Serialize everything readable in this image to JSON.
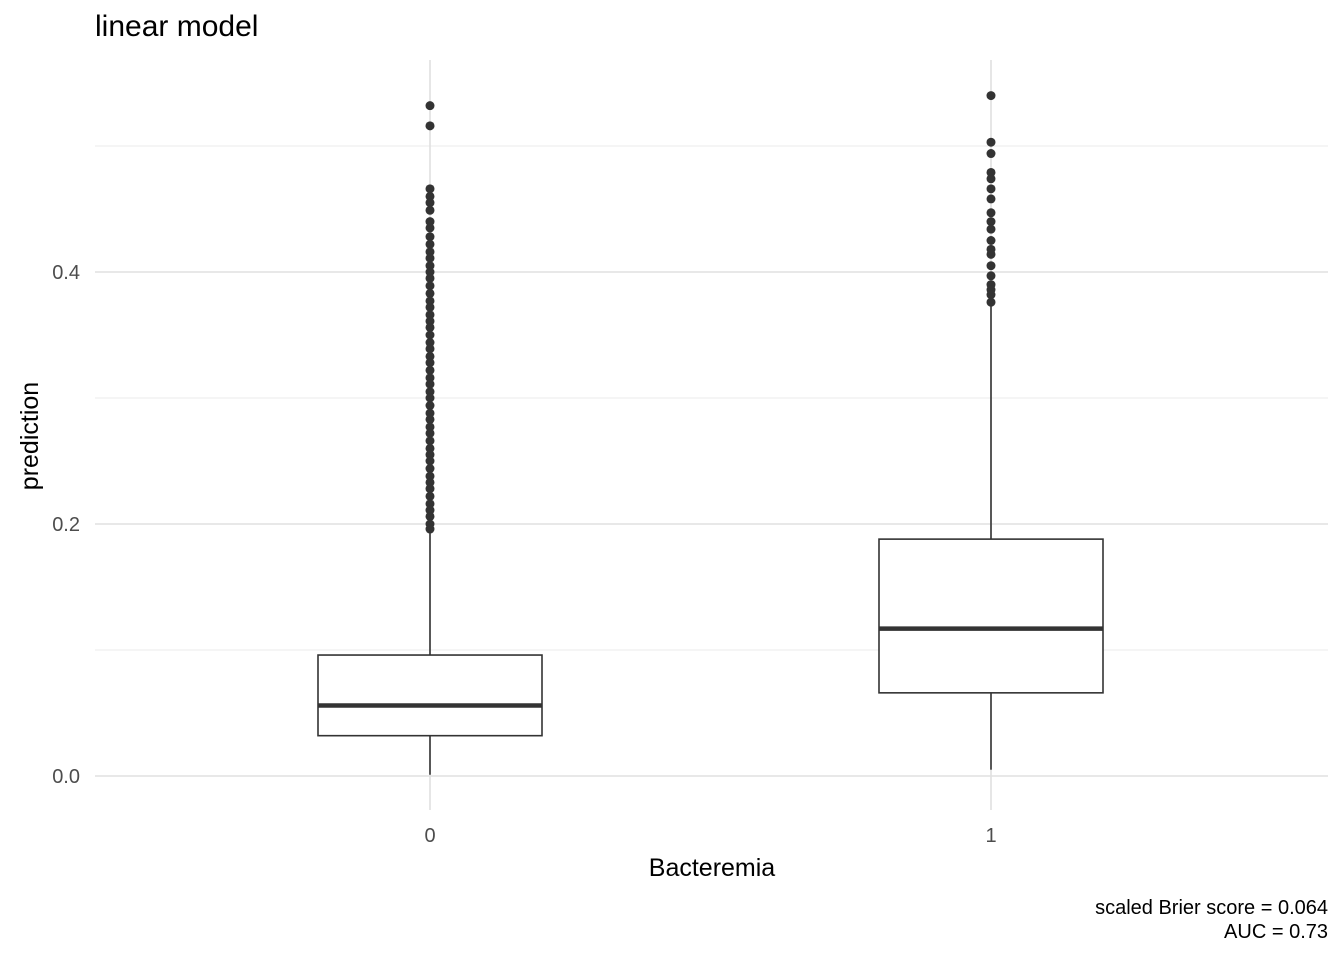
{
  "chart_data": {
    "type": "boxplot",
    "title": "linear model",
    "xlabel": "Bacteremia",
    "ylabel": "prediction",
    "ylim": [
      -0.05,
      0.57
    ],
    "yticks": [
      0.0,
      0.2,
      0.4
    ],
    "ytick_labels": [
      "0.0",
      "0.2",
      "0.4"
    ],
    "minor_gridlines": [
      0.1,
      0.3,
      0.5
    ],
    "grid": true,
    "categories": [
      "0",
      "1"
    ],
    "boxes": [
      {
        "category": "0",
        "whisker_low": 0.001,
        "q1": 0.032,
        "median": 0.056,
        "q3": 0.096,
        "whisker_high": 0.193,
        "outliers": [
          0.532,
          0.516,
          0.466,
          0.46,
          0.455,
          0.449,
          0.44,
          0.435,
          0.428,
          0.422,
          0.416,
          0.411,
          0.405,
          0.4,
          0.395,
          0.389,
          0.383,
          0.377,
          0.372,
          0.366,
          0.361,
          0.356,
          0.35,
          0.344,
          0.339,
          0.333,
          0.328,
          0.322,
          0.316,
          0.311,
          0.305,
          0.3,
          0.294,
          0.288,
          0.283,
          0.277,
          0.272,
          0.266,
          0.26,
          0.255,
          0.25,
          0.244,
          0.238,
          0.233,
          0.228,
          0.222,
          0.216,
          0.211,
          0.206,
          0.2,
          0.196
        ]
      },
      {
        "category": "1",
        "whisker_low": 0.005,
        "q1": 0.066,
        "median": 0.117,
        "q3": 0.188,
        "whisker_high": 0.374,
        "outliers": [
          0.54,
          0.503,
          0.494,
          0.479,
          0.474,
          0.466,
          0.458,
          0.447,
          0.44,
          0.434,
          0.425,
          0.418,
          0.414,
          0.405,
          0.397,
          0.39,
          0.386,
          0.382,
          0.376
        ]
      }
    ],
    "annotations": [
      "scaled Brier score = 0.064",
      "AUC = 0.73"
    ]
  }
}
